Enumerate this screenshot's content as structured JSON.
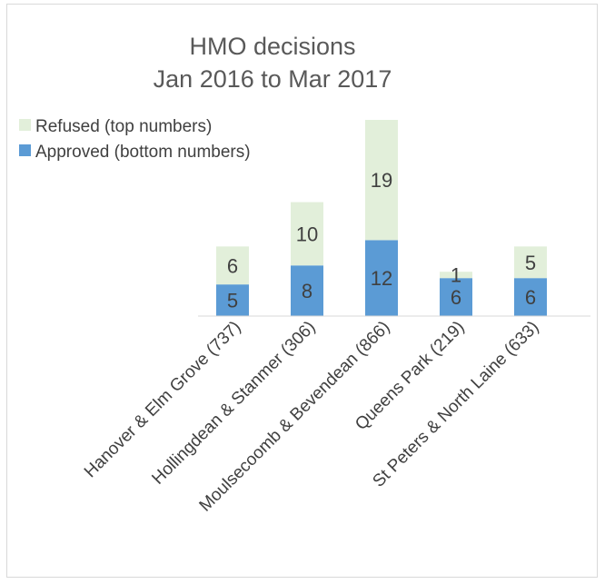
{
  "chart_data": {
    "type": "bar",
    "stacked": true,
    "title": [
      "HMO decisions",
      "Jan 2016 to Mar 2017"
    ],
    "categories": [
      "Hanover & Elm Grove (737)",
      "Hollingdean & Stanmer (306)",
      "Moulsecoomb & Bevendean (866)",
      "Queens Park (219)",
      "St Peters & North Laine (633)"
    ],
    "series": [
      {
        "name": "Approved (bottom numbers)",
        "values": [
          5,
          8,
          12,
          6,
          6
        ],
        "color": "#5b9bd5"
      },
      {
        "name": "Refused (top numbers)",
        "values": [
          6,
          10,
          19,
          1,
          5
        ],
        "color": "#e2efda"
      }
    ],
    "legend_order": [
      1,
      0
    ],
    "legend_position": "top-left",
    "ylim": [
      0,
      31
    ],
    "grid": false,
    "xlabel": "",
    "ylabel": ""
  }
}
